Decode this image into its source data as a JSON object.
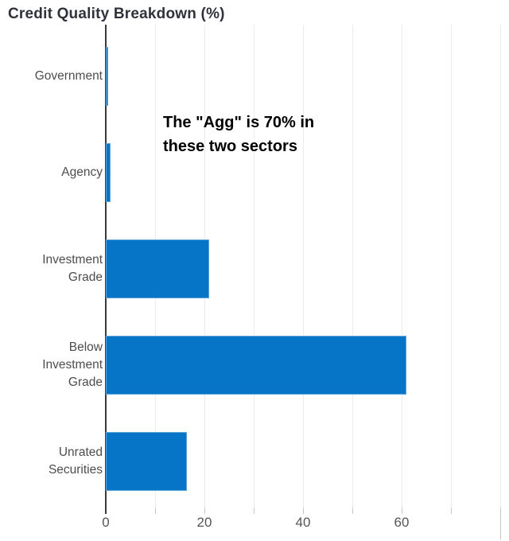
{
  "chart": {
    "title": "Credit Quality Breakdown (%)",
    "annotation": {
      "line1": "The \"Agg\" is 70% in",
      "line2": "these two sectors"
    }
  },
  "chart_data": {
    "type": "bar",
    "orientation": "horizontal",
    "title": "Credit Quality Breakdown (%)",
    "categories": [
      "Government",
      "Agency",
      "Investment Grade",
      "Below Investment Grade",
      "Unrated Securities"
    ],
    "category_label_lines": [
      [
        "Government"
      ],
      [
        "Agency"
      ],
      [
        "Investment",
        "Grade"
      ],
      [
        "Below",
        "Investment",
        "Grade"
      ],
      [
        "Unrated",
        "Securities"
      ]
    ],
    "values": [
      0.5,
      1,
      21,
      61,
      16.5
    ],
    "xlabel": "",
    "ylabel": "",
    "xlim": [
      0,
      80
    ],
    "gridline_interval": 10,
    "xticks_labeled": [
      0,
      20,
      40,
      60
    ],
    "xtick_labels": [
      "0",
      "20",
      "40",
      "60"
    ],
    "grid": true,
    "legend": false,
    "annotation": "The \"Agg\" is 70% in these two sectors",
    "colors": {
      "bar_fill": "#0675c8",
      "bar_border": "#5ea4d8",
      "gridline": "#ececec",
      "tick": "#c9c9c9",
      "zero_line": "#3a3a3a",
      "title_text": "#2f323a",
      "category_label": "#4d4d4d",
      "tick_label": "#555555",
      "annotation_text": "#000000"
    }
  }
}
